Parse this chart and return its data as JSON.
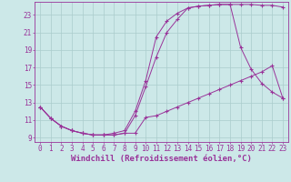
{
  "xlabel": "Windchill (Refroidissement éolien,°C)",
  "bg_color": "#cce8e8",
  "grid_color": "#aacccc",
  "line_color": "#993399",
  "xlim": [
    -0.5,
    23.5
  ],
  "ylim": [
    8.5,
    24.5
  ],
  "xticks": [
    0,
    1,
    2,
    3,
    4,
    5,
    6,
    7,
    8,
    9,
    10,
    11,
    12,
    13,
    14,
    15,
    16,
    17,
    18,
    19,
    20,
    21,
    22,
    23
  ],
  "yticks": [
    9,
    11,
    13,
    15,
    17,
    19,
    21,
    23
  ],
  "line1_x": [
    0,
    1,
    2,
    3,
    4,
    5,
    6,
    7,
    8,
    9,
    10,
    11,
    12,
    13,
    14,
    15,
    16,
    17,
    18,
    19,
    20,
    21,
    22,
    23
  ],
  "line1_y": [
    12.5,
    11.2,
    10.3,
    9.8,
    9.5,
    9.3,
    9.3,
    9.3,
    9.5,
    9.5,
    11.3,
    11.5,
    12.0,
    12.5,
    13.0,
    13.5,
    14.0,
    14.5,
    15.0,
    15.5,
    16.0,
    16.5,
    17.2,
    13.5
  ],
  "line2_x": [
    0,
    1,
    2,
    3,
    4,
    5,
    6,
    7,
    8,
    9,
    10,
    11,
    12,
    13,
    14,
    15,
    16,
    17,
    18,
    19,
    20,
    21,
    22,
    23
  ],
  "line2_y": [
    12.5,
    11.2,
    10.3,
    9.8,
    9.5,
    9.3,
    9.3,
    9.3,
    9.5,
    11.5,
    14.8,
    18.2,
    21.0,
    22.5,
    23.8,
    24.0,
    24.1,
    24.2,
    24.2,
    19.3,
    16.8,
    15.2,
    14.2,
    13.5
  ],
  "line3_x": [
    0,
    1,
    2,
    3,
    4,
    5,
    6,
    7,
    8,
    9,
    10,
    11,
    12,
    13,
    14,
    15,
    16,
    17,
    18,
    19,
    20,
    21,
    22,
    23
  ],
  "line3_y": [
    12.5,
    11.2,
    10.3,
    9.8,
    9.5,
    9.3,
    9.3,
    9.5,
    9.8,
    12.0,
    15.5,
    20.5,
    22.3,
    23.2,
    23.8,
    24.0,
    24.1,
    24.2,
    24.2,
    24.2,
    24.2,
    24.1,
    24.1,
    23.9
  ],
  "tick_fontsize": 5.5,
  "xlabel_fontsize": 6.5
}
